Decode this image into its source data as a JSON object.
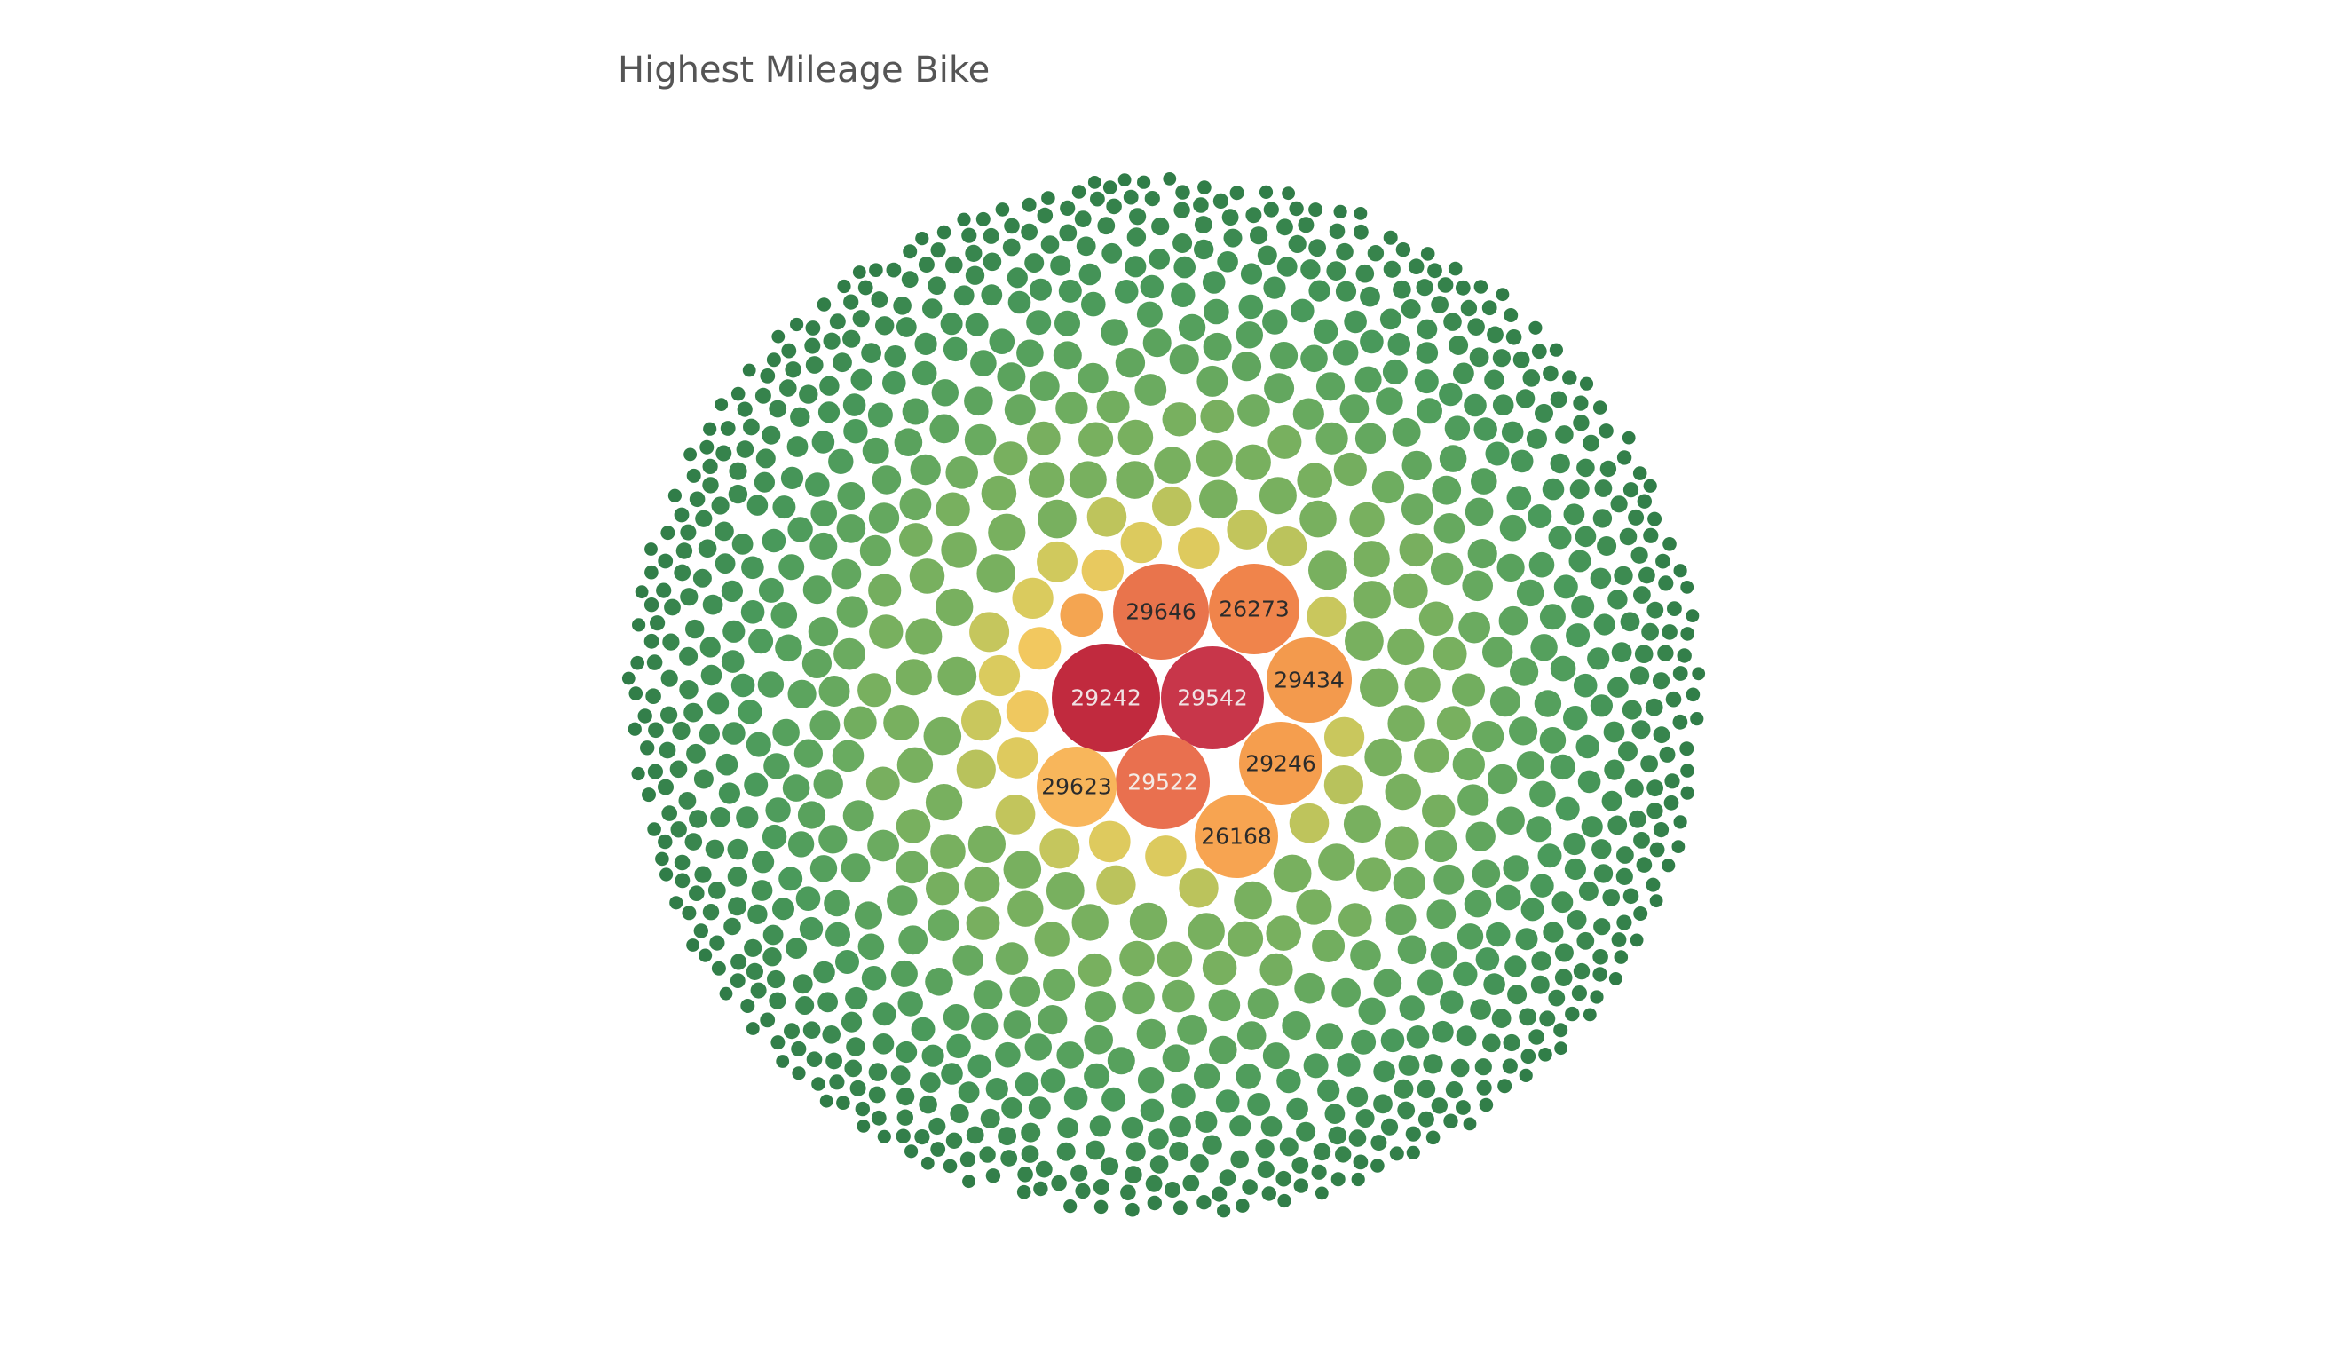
{
  "chart_data": {
    "type": "bubble",
    "title": "Highest Mileage Bike",
    "labeled_bubbles": [
      {
        "label": "29242",
        "rank": 1,
        "color": "#c12a3e",
        "text_color": "#f0e2e4"
      },
      {
        "label": "29542",
        "rank": 2,
        "color": "#c8364a",
        "text_color": "#f0e2e4"
      },
      {
        "label": "29646",
        "rank": 3,
        "color": "#e9744c",
        "text_color": "#2b2b2b"
      },
      {
        "label": "29522",
        "rank": 4,
        "color": "#e9704f",
        "text_color": "#f4ece6"
      },
      {
        "label": "26273",
        "rank": 5,
        "color": "#f0844b",
        "text_color": "#2b2b2b"
      },
      {
        "label": "29434",
        "rank": 6,
        "color": "#f39a4d",
        "text_color": "#2b2b2b"
      },
      {
        "label": "29246",
        "rank": 7,
        "color": "#f59e4e",
        "text_color": "#2b2b2b"
      },
      {
        "label": "26168",
        "rank": 8,
        "color": "#f7a451",
        "text_color": "#2b2b2b"
      },
      {
        "label": "29623",
        "rank": 9,
        "color": "#f8b65b",
        "text_color": "#2b2b2b"
      }
    ],
    "color_scale": [
      "#c12a3e",
      "#e9744c",
      "#f39a4d",
      "#f6c75f",
      "#d8cb5e",
      "#a0bb5a",
      "#6cac60",
      "#4a9a5b",
      "#2e7a46"
    ],
    "unlabeled_bubble_color": "#3e8c52"
  }
}
